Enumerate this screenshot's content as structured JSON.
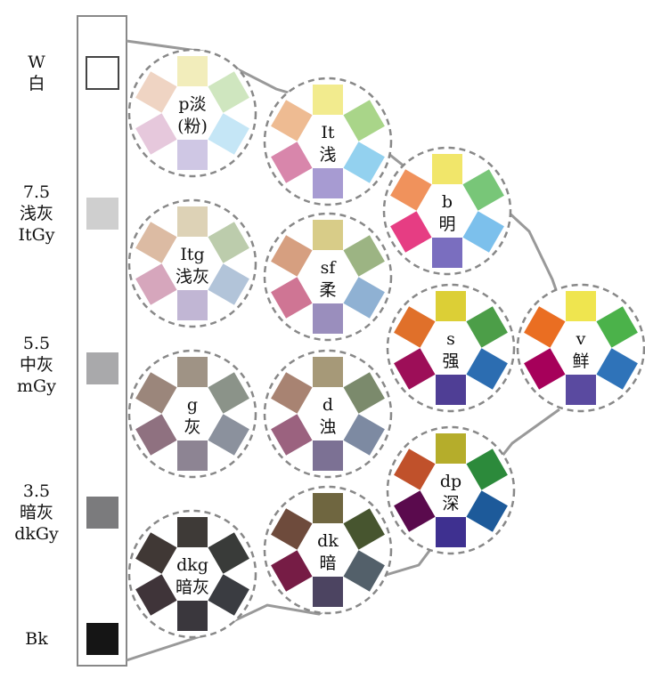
{
  "gray_scale": [
    {
      "lines": [
        "W",
        "白"
      ],
      "color": "#ffffff"
    },
    {
      "lines": [
        "7.5",
        "浅灰",
        "ItGy"
      ],
      "color": "#cfcfcf"
    },
    {
      "lines": [
        "5.5",
        "中灰",
        "mGy"
      ],
      "color": "#a9a9ab"
    },
    {
      "lines": [
        "3.5",
        "暗灰",
        "dkGy"
      ],
      "color": "#7b7b7d"
    },
    {
      "lines": [
        "Bk"
      ],
      "color": "#151515"
    }
  ],
  "tones": [
    {
      "id": "p",
      "code": "p淡",
      "name": "(粉)",
      "colors": [
        "#f2edbb",
        "#cfe6bf",
        "#c5e6f6",
        "#cfc7e4",
        "#e6c8dc",
        "#efd4c3"
      ]
    },
    {
      "id": "lt",
      "code": "It",
      "name": "浅",
      "colors": [
        "#f2eb8e",
        "#a9d589",
        "#93d1ef",
        "#a79bd2",
        "#d886ab",
        "#eebb92"
      ]
    },
    {
      "id": "b",
      "code": "b",
      "name": "明",
      "colors": [
        "#f1e66a",
        "#78c678",
        "#7cc0ec",
        "#7a6ebf",
        "#e63d83",
        "#f0925c"
      ]
    },
    {
      "id": "ltg",
      "code": "Itg",
      "name": "浅灰",
      "colors": [
        "#ddd2b6",
        "#bcccac",
        "#b2c4d9",
        "#c1b6d4",
        "#d6a6bc",
        "#dcbba3"
      ]
    },
    {
      "id": "sf",
      "code": "sf",
      "name": "柔",
      "colors": [
        "#d8cc88",
        "#9cb483",
        "#8fb1d3",
        "#9a8ebd",
        "#cf7594",
        "#d69f80"
      ]
    },
    {
      "id": "s",
      "code": "s",
      "name": "强",
      "colors": [
        "#dccf36",
        "#4c9e48",
        "#2c6db1",
        "#4f3e95",
        "#9d0e58",
        "#e0702a"
      ]
    },
    {
      "id": "v",
      "code": "v",
      "name": "鲜",
      "colors": [
        "#efe54f",
        "#4bb24a",
        "#2f73b9",
        "#5a4aa0",
        "#a6005a",
        "#ea6e22"
      ]
    },
    {
      "id": "g",
      "code": "g",
      "name": "灰",
      "colors": [
        "#9f9385",
        "#8b9389",
        "#8b919d",
        "#8d8493",
        "#8f7180",
        "#9b867b"
      ]
    },
    {
      "id": "d",
      "code": "d",
      "name": "浊",
      "colors": [
        "#a69978",
        "#7b8a6c",
        "#7d8aa2",
        "#7c7194",
        "#9b627f",
        "#a88372"
      ]
    },
    {
      "id": "dp",
      "code": "dp",
      "name": "深",
      "colors": [
        "#b5ad2b",
        "#2c8a3b",
        "#1d5a9a",
        "#3e3090",
        "#5a0a4d",
        "#c0512b"
      ]
    },
    {
      "id": "dkg",
      "code": "dkg",
      "name": "暗灰",
      "colors": [
        "#3e3a37",
        "#393b39",
        "#3a3c41",
        "#3a373d",
        "#3f3439",
        "#403835"
      ]
    },
    {
      "id": "dk",
      "code": "dk",
      "name": "暗",
      "colors": [
        "#6f6640",
        "#47552f",
        "#53606a",
        "#4c4461",
        "#761c45",
        "#6e4b3c"
      ]
    }
  ]
}
